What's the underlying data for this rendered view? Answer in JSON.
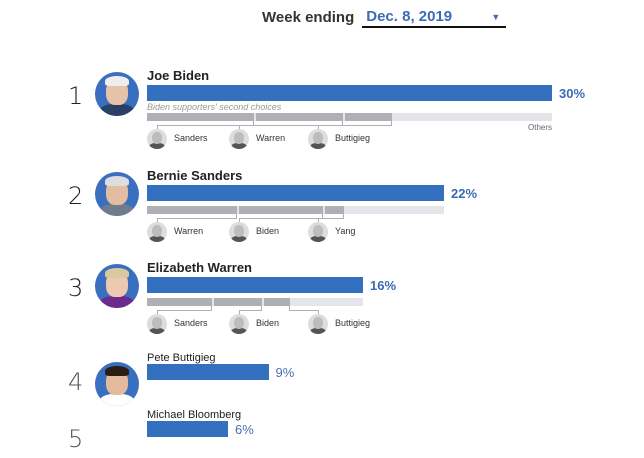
{
  "header": {
    "label": "Week ending",
    "selected_week": "Dec. 8, 2019",
    "dropdown_icon": "caret-down-icon"
  },
  "colors": {
    "bar": "#3470c0",
    "accent_text": "#3c6ab5",
    "second_choice_segment": "#aeb0b6",
    "others_track": "#e4e5e9"
  },
  "chart_data": {
    "type": "bar",
    "title": "Week ending Dec. 8, 2019",
    "orientation": "horizontal",
    "xlim": [
      0,
      30
    ],
    "categories": [
      "Joe Biden",
      "Bernie Sanders",
      "Elizabeth Warren",
      "Pete Buttigieg",
      "Michael Bloomberg"
    ],
    "values": [
      30,
      22,
      16,
      9,
      6
    ],
    "candidates": [
      {
        "rank": "1",
        "name": "Joe Biden",
        "value": 30,
        "label": "30%",
        "second_choice_caption": "Biden supporters' second choices",
        "others_label": "Others",
        "second_choices": [
          {
            "name": "Sanders",
            "share": 27
          },
          {
            "name": "Warren",
            "share": 22
          },
          {
            "name": "Buttigieg",
            "share": 12
          }
        ]
      },
      {
        "rank": "2",
        "name": "Bernie Sanders",
        "value": 22,
        "label": "22%",
        "second_choices": [
          {
            "name": "Warren",
            "share": 31
          },
          {
            "name": "Biden",
            "share": 29
          },
          {
            "name": "Yang",
            "share": 7
          }
        ]
      },
      {
        "rank": "3",
        "name": "Elizabeth Warren",
        "value": 16,
        "label": "16%",
        "second_choices": [
          {
            "name": "Sanders",
            "share": 31
          },
          {
            "name": "Biden",
            "share": 23
          },
          {
            "name": "Buttigieg",
            "share": 13
          }
        ]
      },
      {
        "rank": "4",
        "name": "Pete Buttigieg",
        "value": 9,
        "label": "9%"
      },
      {
        "rank": "5",
        "name": "Michael Bloomberg",
        "value": 6,
        "label": "6%"
      }
    ]
  }
}
